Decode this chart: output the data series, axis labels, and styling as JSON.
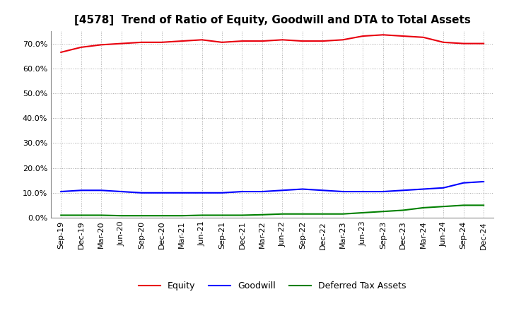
{
  "title": "[4578]  Trend of Ratio of Equity, Goodwill and DTA to Total Assets",
  "x_labels": [
    "Sep-19",
    "Dec-19",
    "Mar-20",
    "Jun-20",
    "Sep-20",
    "Dec-20",
    "Mar-21",
    "Jun-21",
    "Sep-21",
    "Dec-21",
    "Mar-22",
    "Jun-22",
    "Sep-22",
    "Dec-22",
    "Mar-23",
    "Jun-23",
    "Sep-23",
    "Dec-23",
    "Mar-24",
    "Jun-24",
    "Sep-24",
    "Dec-24"
  ],
  "equity": [
    66.5,
    68.5,
    69.5,
    70.0,
    70.5,
    70.5,
    71.0,
    71.5,
    70.5,
    71.0,
    71.0,
    71.5,
    71.0,
    71.0,
    71.5,
    73.0,
    73.5,
    73.0,
    72.5,
    70.5,
    70.0,
    70.0
  ],
  "goodwill": [
    10.5,
    11.0,
    11.0,
    10.5,
    10.0,
    10.0,
    10.0,
    10.0,
    10.0,
    10.5,
    10.5,
    11.0,
    11.5,
    11.0,
    10.5,
    10.5,
    10.5,
    11.0,
    11.5,
    12.0,
    14.0,
    14.5
  ],
  "dta": [
    1.0,
    1.0,
    1.0,
    0.8,
    0.8,
    0.8,
    0.8,
    1.0,
    1.0,
    1.0,
    1.2,
    1.5,
    1.5,
    1.5,
    1.5,
    2.0,
    2.5,
    3.0,
    4.0,
    4.5,
    5.0,
    5.0
  ],
  "equity_color": "#e8000d",
  "goodwill_color": "#0000ff",
  "dta_color": "#008000",
  "ylim": [
    0,
    75
  ],
  "yticks": [
    0,
    10,
    20,
    30,
    40,
    50,
    60,
    70
  ],
  "background_color": "#ffffff",
  "grid_color": "#aaaaaa",
  "legend_labels": [
    "Equity",
    "Goodwill",
    "Deferred Tax Assets"
  ],
  "line_width": 1.5,
  "title_fontsize": 11,
  "tick_fontsize": 8,
  "legend_fontsize": 9
}
